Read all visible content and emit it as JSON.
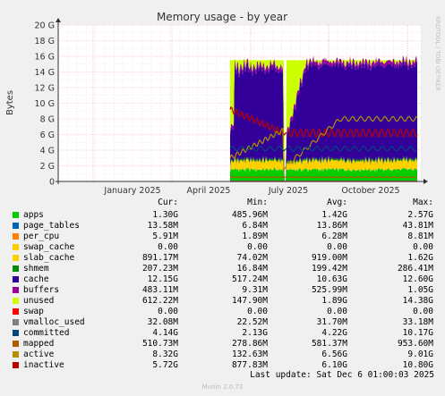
{
  "chart_data": {
    "type": "area",
    "title": "Memory usage - by year",
    "ylabel": "Bytes",
    "ylim": [
      0,
      20
    ],
    "y_unit": "G",
    "yticks": [
      "0",
      "2 G",
      "4 G",
      "6 G",
      "8 G",
      "10 G",
      "12 G",
      "14 G",
      "16 G",
      "18 G",
      "20 G"
    ],
    "xticks": [
      "January 2025",
      "April 2025",
      "July 2025",
      "October 2025"
    ],
    "side_label": "RRDTOOL / TOBI OETIKER",
    "grid": true,
    "legend_headers": [
      "Cur:",
      "Min:",
      "Avg:",
      "Max:"
    ],
    "series": [
      {
        "name": "apps",
        "color": "#00cc00",
        "cur": "1.30G",
        "min": "485.96M",
        "avg": "1.42G",
        "max": "2.57G"
      },
      {
        "name": "page_tables",
        "color": "#0066b3",
        "cur": "13.58M",
        "min": "6.84M",
        "avg": "13.86M",
        "max": "43.81M"
      },
      {
        "name": "per_cpu",
        "color": "#ff8000",
        "cur": "5.91M",
        "min": "1.89M",
        "avg": "6.28M",
        "max": "8.81M"
      },
      {
        "name": "swap_cache",
        "color": "#ffcc00",
        "cur": "0.00",
        "min": "0.00",
        "avg": "0.00",
        "max": "0.00"
      },
      {
        "name": "slab_cache",
        "color": "#ffd000",
        "cur": "891.17M",
        "min": "74.02M",
        "avg": "919.00M",
        "max": "1.62G"
      },
      {
        "name": "shmem",
        "color": "#008f00",
        "cur": "207.23M",
        "min": "16.84M",
        "avg": "199.42M",
        "max": "286.41M"
      },
      {
        "name": "cache",
        "color": "#330099",
        "cur": "12.15G",
        "min": "517.24M",
        "avg": "10.63G",
        "max": "12.60G"
      },
      {
        "name": "buffers",
        "color": "#990099",
        "cur": "483.11M",
        "min": "9.31M",
        "avg": "525.99M",
        "max": "1.05G"
      },
      {
        "name": "unused",
        "color": "#ccff00",
        "cur": "612.22M",
        "min": "147.90M",
        "avg": "1.89G",
        "max": "14.38G"
      },
      {
        "name": "swap",
        "color": "#ff0000",
        "cur": "0.00",
        "min": "0.00",
        "avg": "0.00",
        "max": "0.00"
      },
      {
        "name": "vmalloc_used",
        "color": "#808080",
        "cur": "32.08M",
        "min": "22.52M",
        "avg": "31.70M",
        "max": "33.18M"
      },
      {
        "name": "committed",
        "color": "#00487d",
        "cur": "4.14G",
        "min": "2.13G",
        "avg": "4.22G",
        "max": "10.17G"
      },
      {
        "name": "mapped",
        "color": "#b35a00",
        "cur": "510.73M",
        "min": "278.86M",
        "avg": "581.37M",
        "max": "953.60M"
      },
      {
        "name": "active",
        "color": "#b38f00",
        "cur": "8.32G",
        "min": "132.63M",
        "avg": "6.56G",
        "max": "9.01G"
      },
      {
        "name": "inactive",
        "color": "#bb0000",
        "cur": "5.72G",
        "min": "877.83M",
        "avg": "6.10G",
        "max": "10.80G"
      }
    ]
  },
  "footer": {
    "last_update": "Last update: Sat Dec  6 01:00:03 2025",
    "munin": "Munin 2.0.73"
  }
}
